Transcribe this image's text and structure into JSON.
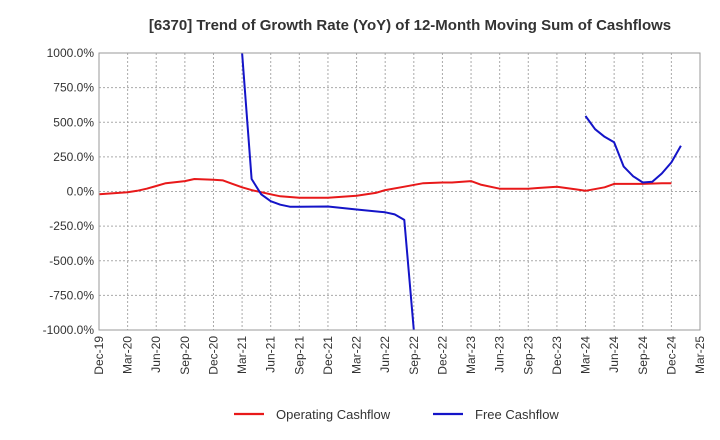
{
  "chart_data": {
    "type": "line",
    "title": "[6370]  Trend of Growth Rate (YoY) of 12-Month Moving Sum of Cashflows",
    "xlabel": "",
    "ylabel": "",
    "ylim": [
      -1000,
      1000
    ],
    "y_ticks": [
      "1000.0%",
      "750.0%",
      "500.0%",
      "250.0%",
      "0.0%",
      "-250.0%",
      "-500.0%",
      "-750.0%",
      "-1000.0%"
    ],
    "y_tick_values": [
      1000,
      750,
      500,
      250,
      0,
      -250,
      -500,
      -750,
      -1000
    ],
    "x_tick_labels": [
      "Dec-19",
      "Mar-20",
      "Jun-20",
      "Sep-20",
      "Dec-20",
      "Mar-21",
      "Jun-21",
      "Sep-21",
      "Dec-21",
      "Mar-22",
      "Jun-22",
      "Sep-22",
      "Dec-22",
      "Mar-23",
      "Jun-23",
      "Sep-23",
      "Dec-23",
      "Mar-24",
      "Jun-24",
      "Sep-24",
      "Dec-24",
      "Mar-25"
    ],
    "x_months": [
      "2019-12",
      "2020-01",
      "2020-02",
      "2020-03",
      "2020-04",
      "2020-05",
      "2020-06",
      "2020-07",
      "2020-08",
      "2020-09",
      "2020-10",
      "2020-11",
      "2020-12",
      "2021-01",
      "2021-02",
      "2021-03",
      "2021-04",
      "2021-05",
      "2021-06",
      "2021-07",
      "2021-08",
      "2021-09",
      "2021-10",
      "2021-11",
      "2021-12",
      "2022-01",
      "2022-02",
      "2022-03",
      "2022-04",
      "2022-05",
      "2022-06",
      "2022-07",
      "2022-08",
      "2022-09",
      "2022-10",
      "2022-11",
      "2022-12",
      "2023-01",
      "2023-02",
      "2023-03",
      "2023-04",
      "2023-05",
      "2023-06",
      "2023-07",
      "2023-08",
      "2023-09",
      "2023-10",
      "2023-11",
      "2023-12",
      "2024-01",
      "2024-02",
      "2024-03",
      "2024-04",
      "2024-05",
      "2024-06",
      "2024-07",
      "2024-08",
      "2024-09",
      "2024-10",
      "2024-11",
      "2024-12",
      "2025-01",
      "2025-02",
      "2025-03"
    ],
    "grid": true,
    "legend_position": "bottom",
    "series": [
      {
        "name": "Operating Cashflow",
        "color": "#e8191a",
        "points": [
          [
            "2019-12",
            -20
          ],
          [
            "2020-03",
            -5
          ],
          [
            "2020-04",
            5
          ],
          [
            "2020-05",
            20
          ],
          [
            "2020-06",
            40
          ],
          [
            "2020-07",
            60
          ],
          [
            "2020-09",
            75
          ],
          [
            "2020-10",
            90
          ],
          [
            "2020-12",
            85
          ],
          [
            "2021-01",
            80
          ],
          [
            "2021-02",
            55
          ],
          [
            "2021-03",
            30
          ],
          [
            "2021-04",
            10
          ],
          [
            "2021-05",
            -5
          ],
          [
            "2021-06",
            -20
          ],
          [
            "2021-07",
            -35
          ],
          [
            "2021-09",
            -45
          ],
          [
            "2021-12",
            -45
          ],
          [
            "2022-03",
            -30
          ],
          [
            "2022-05",
            -10
          ],
          [
            "2022-06",
            10
          ],
          [
            "2022-08",
            35
          ],
          [
            "2022-10",
            60
          ],
          [
            "2022-12",
            65
          ],
          [
            "2023-01",
            65
          ],
          [
            "2023-03",
            75
          ],
          [
            "2023-04",
            50
          ],
          [
            "2023-06",
            20
          ],
          [
            "2023-09",
            20
          ],
          [
            "2023-10",
            25
          ],
          [
            "2023-12",
            35
          ],
          [
            "2024-02",
            15
          ],
          [
            "2024-03",
            5
          ],
          [
            "2024-05",
            30
          ],
          [
            "2024-06",
            55
          ],
          [
            "2024-09",
            55
          ],
          [
            "2024-11",
            60
          ],
          [
            "2024-12",
            60
          ]
        ]
      },
      {
        "name": "Free Cashflow",
        "color": "#1414c8",
        "segments": [
          [
            [
              "2021-03",
              1000
            ],
            [
              "2021-04",
              90
            ],
            [
              "2021-05",
              -20
            ],
            [
              "2021-06",
              -70
            ],
            [
              "2021-07",
              -95
            ],
            [
              "2021-08",
              -110
            ],
            [
              "2021-09",
              -110
            ],
            [
              "2021-12",
              -108
            ],
            [
              "2022-03",
              -130
            ],
            [
              "2022-06",
              -150
            ],
            [
              "2022-07",
              -165
            ],
            [
              "2022-08",
              -205
            ],
            [
              "2022-09",
              -1000
            ]
          ],
          [
            [
              "2024-03",
              545
            ],
            [
              "2024-04",
              450
            ],
            [
              "2024-05",
              395
            ],
            [
              "2024-06",
              355
            ],
            [
              "2024-07",
              180
            ],
            [
              "2024-08",
              110
            ],
            [
              "2024-09",
              65
            ],
            [
              "2024-10",
              70
            ],
            [
              "2024-11",
              130
            ],
            [
              "2024-12",
              210
            ],
            [
              "2025-01",
              330
            ]
          ]
        ]
      }
    ]
  }
}
